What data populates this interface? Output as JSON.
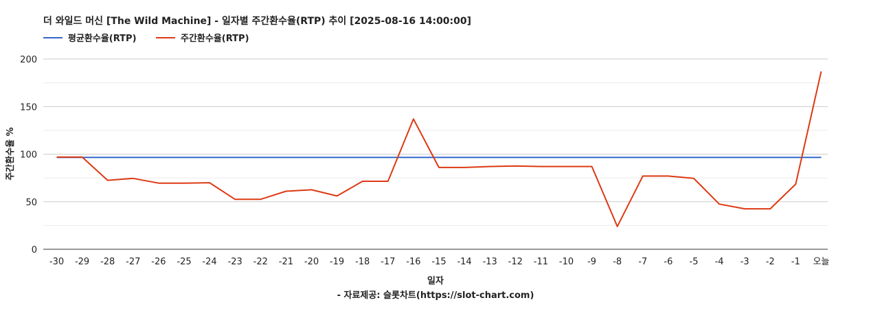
{
  "chart_data": {
    "type": "line",
    "title": "더 와일드 머신 [The Wild Machine] - 일자별 주간환수율(RTP) 추이 [2025-08-16 14:00:00]",
    "xlabel": "일자",
    "ylabel": "주간환수율 %",
    "source": "- 자료제공: 슬롯차트(https://slot-chart.com)",
    "ylim": [
      0,
      200
    ],
    "yticks": [
      0,
      50,
      100,
      150,
      200
    ],
    "grid": true,
    "legend_position": "top-left",
    "categories": [
      "-30",
      "-29",
      "-28",
      "-27",
      "-26",
      "-25",
      "-24",
      "-23",
      "-22",
      "-21",
      "-20",
      "-19",
      "-18",
      "-17",
      "-16",
      "-15",
      "-14",
      "-13",
      "-12",
      "-11",
      "-10",
      "-9",
      "-8",
      "-7",
      "-6",
      "-5",
      "-4",
      "-3",
      "-2",
      "-1",
      "오늘"
    ],
    "series": [
      {
        "name": "평균환수율(RTP)",
        "color": "#3366cc",
        "values": [
          96.5,
          96.5,
          96.5,
          96.5,
          96.5,
          96.5,
          96.5,
          96.5,
          96.5,
          96.5,
          96.5,
          96.5,
          96.5,
          96.5,
          96.5,
          96.5,
          96.5,
          96.5,
          96.5,
          96.5,
          96.5,
          96.5,
          96.5,
          96.5,
          96.5,
          96.5,
          96.5,
          96.5,
          96.5,
          96.5,
          96.5
        ]
      },
      {
        "name": "주간환수율(RTP)",
        "color": "#dc3912",
        "values": [
          97,
          97,
          72.5,
          74.5,
          69.5,
          69.5,
          70,
          52.5,
          52.5,
          61,
          62.5,
          56,
          71.5,
          71.5,
          137,
          86,
          86,
          87,
          87.5,
          87,
          87,
          87,
          24,
          77,
          77,
          74.5,
          47.5,
          42.5,
          42.5,
          68.5,
          187
        ]
      }
    ]
  }
}
